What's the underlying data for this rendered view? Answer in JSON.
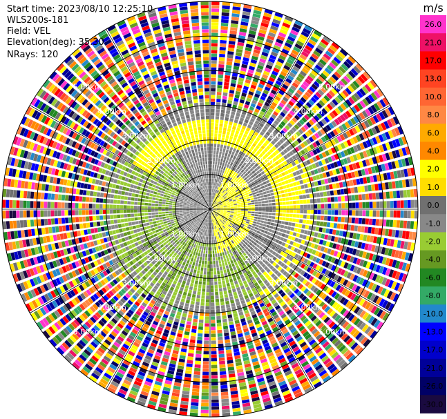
{
  "header": {
    "start_time": "Start time: 2023/08/10 12:25:10",
    "instrument": "WLS200s-181",
    "field": "Field: VEL",
    "elevation": "Elevation(deg): 35.30",
    "nrays": "NRays: 120"
  },
  "chart_data": {
    "type": "heatmap",
    "subtype": "polar-ppi",
    "field": "VEL",
    "units": "m/s",
    "n_rays": 120,
    "max_range_km": 6.0,
    "range_rings_km": [
      1.0,
      2.0,
      3.0,
      4.0,
      5.0,
      6.0
    ],
    "range_labels": [
      "1.00km",
      "2.00km",
      "3.00km",
      "4.00km",
      "5.00km"
    ],
    "colorbar": {
      "label": "m/s",
      "ticks": [
        "26.0",
        "21.0",
        "17.0",
        "13.0",
        "10.0",
        "8.0",
        "6.0",
        "4.0",
        "2.0",
        "1.0",
        "0.0",
        "-1.0",
        "-2.0",
        "-4.0",
        "-6.0",
        "-8.0",
        "-10.0",
        "-13.0",
        "-17.0",
        "-21.0",
        "-26.0",
        "-30.0"
      ],
      "colors": [
        "#ff33cc",
        "#ee1166",
        "#ff0000",
        "#ff4422",
        "#ff6633",
        "#ff8844",
        "#ffaa00",
        "#ff8800",
        "#ffff00",
        "#ffdd00",
        "#707070",
        "#888888",
        "#99cc33",
        "#669922",
        "#228822",
        "#33aa66",
        "#2288cc",
        "#0000ff",
        "#0000cc",
        "#000099",
        "#000066",
        "#1a0a40"
      ]
    }
  }
}
